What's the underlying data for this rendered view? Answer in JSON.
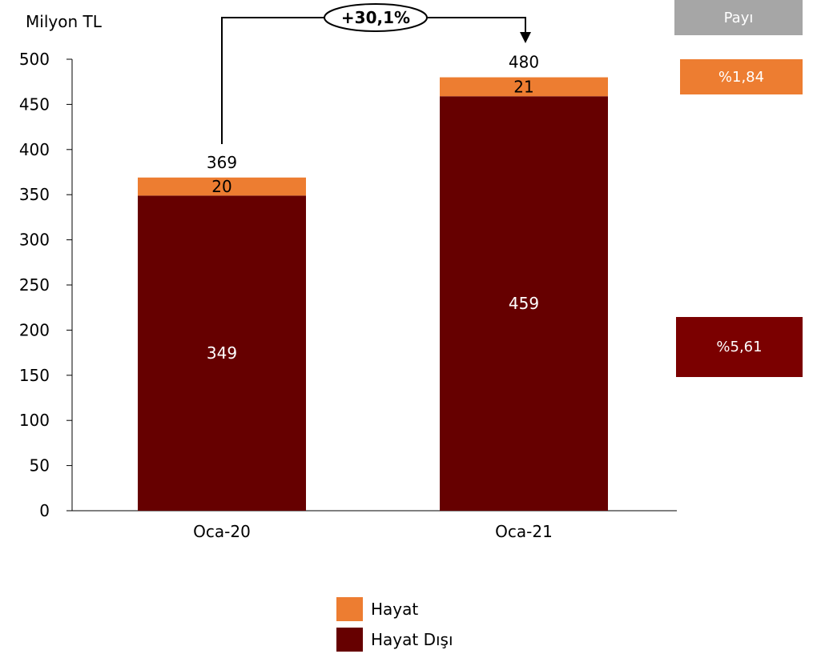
{
  "chart_data": {
    "type": "bar",
    "stacked": true,
    "unit_label": "Milyon TL",
    "categories": [
      "Oca-20",
      "Oca-21"
    ],
    "series": [
      {
        "name": "Hayat Dışı",
        "values": [
          349,
          459
        ],
        "color": "#660000"
      },
      {
        "name": "Hayat",
        "values": [
          20,
          21
        ],
        "color": "#ed7d31"
      }
    ],
    "totals": [
      369,
      480
    ],
    "ylim": [
      0,
      500
    ],
    "yticks": [
      0,
      50,
      100,
      150,
      200,
      250,
      300,
      350,
      400,
      450,
      500
    ],
    "grid": false,
    "legend_position": "bottom",
    "growth_annotation": "+30,1%"
  },
  "share_panel": {
    "header": "Payı",
    "hayat_share": "%1,84",
    "hayat_disi_share": "%5,61",
    "header_color": "#a6a6a6",
    "hayat_color": "#ed7d31",
    "hayat_disi_color": "#7b0000"
  },
  "legend": {
    "items": [
      {
        "label": "Hayat",
        "color": "#ed7d31"
      },
      {
        "label": "Hayat Dışı",
        "color": "#660000"
      }
    ]
  }
}
